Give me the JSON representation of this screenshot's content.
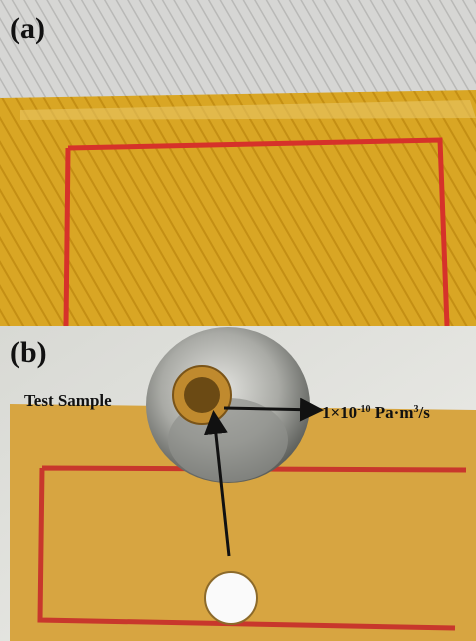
{
  "panels": [
    {
      "label": "(a)"
    },
    {
      "label": "(b)",
      "sample_label": "Test Sample",
      "leak_rate": {
        "mantissa": "1×10",
        "exponent": "-10",
        "unit": " Pa·m",
        "unit_power": "3",
        "unit_tail": "/s"
      }
    }
  ]
}
